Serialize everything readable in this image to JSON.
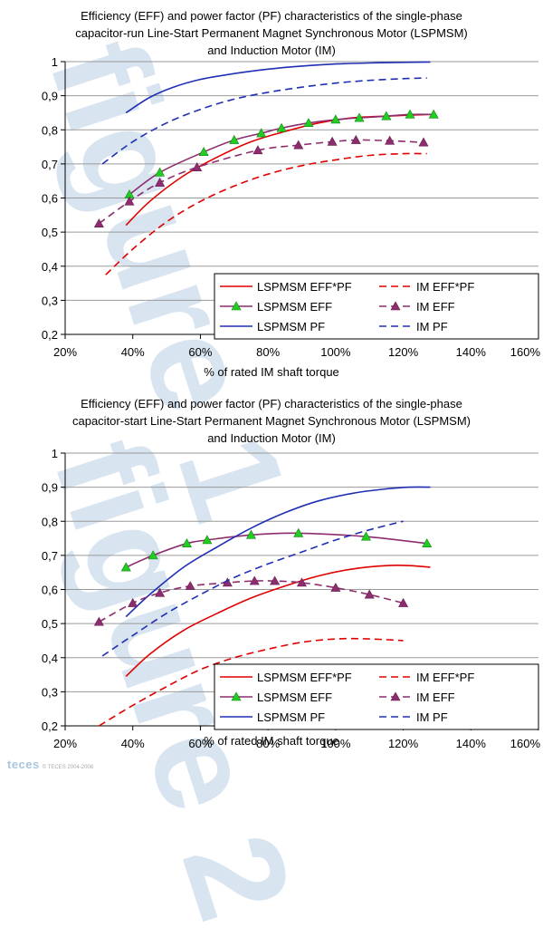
{
  "watermarks": [
    "figure 1",
    "figure 2"
  ],
  "logo": {
    "name": "teces",
    "small": "© TECES 2004-2008"
  },
  "chart_data": [
    {
      "type": "line",
      "title_lines": [
        "Efficiency (EFF) and power factor (PF) characteristics of the single-phase",
        "capacitor-run Line-Start Permanent Magnet Synchronous Motor (LSPMSM)",
        "and Induction Motor (IM)"
      ],
      "xlabel": "% of rated IM shaft torque",
      "ylabel": "",
      "xlim": [
        20,
        160
      ],
      "ylim": [
        0.2,
        1.0
      ],
      "xticks": [
        "20%",
        "40%",
        "60%",
        "80%",
        "100%",
        "120%",
        "140%",
        "160%"
      ],
      "yticks": [
        "0,2",
        "0,3",
        "0,4",
        "0,5",
        "0,6",
        "0,7",
        "0,8",
        "0,9",
        "1"
      ],
      "grid": "horizontal",
      "legend": "bottom-right",
      "series": [
        {
          "name": "LSPMSM EFF*PF",
          "color": "#e00000",
          "dash": "solid",
          "marker": "none",
          "x": [
            38,
            45,
            55,
            65,
            75,
            85,
            95,
            105,
            115,
            122,
            128
          ],
          "y": [
            0.52,
            0.59,
            0.665,
            0.72,
            0.765,
            0.795,
            0.82,
            0.835,
            0.84,
            0.843,
            0.845
          ]
        },
        {
          "name": "LSPMSM EFF",
          "color": "#8c2d6e",
          "dash": "solid",
          "marker": "triangle-green",
          "x": [
            39,
            48,
            61,
            70,
            78,
            84,
            92,
            100,
            107,
            115,
            122,
            129
          ],
          "y": [
            0.61,
            0.675,
            0.735,
            0.77,
            0.79,
            0.805,
            0.82,
            0.83,
            0.835,
            0.84,
            0.845,
            0.845
          ]
        },
        {
          "name": "LSPMSM PF",
          "color": "#1f2fb4",
          "dash": "solid",
          "marker": "none",
          "x": [
            38,
            45,
            52,
            60,
            70,
            80,
            90,
            100,
            110,
            120,
            128
          ],
          "y": [
            0.85,
            0.895,
            0.925,
            0.948,
            0.965,
            0.978,
            0.987,
            0.993,
            0.996,
            0.998,
            0.999
          ]
        },
        {
          "name": "IM EFF*PF",
          "color": "#e00000",
          "dash": "dashed",
          "marker": "none",
          "x": [
            32,
            40,
            50,
            60,
            70,
            80,
            90,
            100,
            110,
            120,
            127
          ],
          "y": [
            0.375,
            0.45,
            0.53,
            0.59,
            0.635,
            0.67,
            0.695,
            0.712,
            0.725,
            0.73,
            0.73
          ]
        },
        {
          "name": "IM EFF",
          "color": "#8c2d6e",
          "dash": "dashed",
          "marker": "triangle-purple",
          "x": [
            30,
            39,
            48,
            59,
            77,
            89,
            99,
            106,
            116,
            126
          ],
          "y": [
            0.525,
            0.59,
            0.645,
            0.69,
            0.74,
            0.755,
            0.765,
            0.77,
            0.768,
            0.763
          ]
        },
        {
          "name": "IM PF",
          "color": "#1f2fb4",
          "dash": "dashed",
          "marker": "none",
          "x": [
            31,
            40,
            50,
            60,
            70,
            80,
            90,
            100,
            110,
            120,
            127
          ],
          "y": [
            0.7,
            0.765,
            0.82,
            0.86,
            0.89,
            0.91,
            0.925,
            0.937,
            0.945,
            0.95,
            0.952
          ]
        }
      ]
    },
    {
      "type": "line",
      "title_lines": [
        "Efficiency (EFF) and power factor (PF) characteristics of the single-phase",
        "capacitor-start Line-Start Permanent Magnet Synchronous Motor (LSPMSM)",
        "and Induction Motor (IM)"
      ],
      "xlabel": "% of rated IM shaft torque",
      "ylabel": "",
      "xlim": [
        20,
        160
      ],
      "ylim": [
        0.2,
        1.0
      ],
      "xticks": [
        "20%",
        "40%",
        "60%",
        "80%",
        "100%",
        "120%",
        "140%",
        "160%"
      ],
      "yticks": [
        "0,2",
        "0,3",
        "0,4",
        "0,5",
        "0,6",
        "0,7",
        "0,8",
        "0,9",
        "1"
      ],
      "grid": "horizontal",
      "legend": "bottom-right",
      "series": [
        {
          "name": "LSPMSM EFF*PF",
          "color": "#e00000",
          "dash": "solid",
          "marker": "none",
          "x": [
            38,
            45,
            55,
            65,
            75,
            85,
            95,
            105,
            115,
            122,
            128
          ],
          "y": [
            0.345,
            0.41,
            0.48,
            0.53,
            0.575,
            0.61,
            0.64,
            0.66,
            0.67,
            0.67,
            0.665
          ]
        },
        {
          "name": "LSPMSM EFF",
          "color": "#8c2d6e",
          "dash": "solid",
          "marker": "triangle-green",
          "x": [
            38,
            46,
            56,
            62,
            75,
            89,
            109,
            127
          ],
          "y": [
            0.665,
            0.7,
            0.735,
            0.745,
            0.76,
            0.765,
            0.755,
            0.735
          ]
        },
        {
          "name": "LSPMSM PF",
          "color": "#1f2fb4",
          "dash": "solid",
          "marker": "none",
          "x": [
            38,
            45,
            55,
            65,
            75,
            85,
            95,
            105,
            115,
            122,
            128
          ],
          "y": [
            0.52,
            0.585,
            0.665,
            0.725,
            0.78,
            0.825,
            0.86,
            0.882,
            0.895,
            0.9,
            0.9
          ]
        },
        {
          "name": "IM EFF*PF",
          "color": "#e00000",
          "dash": "dashed",
          "marker": "none",
          "x": [
            30,
            40,
            50,
            60,
            70,
            80,
            90,
            100,
            110,
            120
          ],
          "y": [
            0.2,
            0.26,
            0.315,
            0.365,
            0.4,
            0.425,
            0.445,
            0.455,
            0.455,
            0.45
          ]
        },
        {
          "name": "IM EFF",
          "color": "#8c2d6e",
          "dash": "dashed",
          "marker": "triangle-purple",
          "x": [
            30,
            40,
            48,
            57,
            68,
            76,
            82,
            90,
            100,
            110,
            120
          ],
          "y": [
            0.505,
            0.56,
            0.59,
            0.61,
            0.62,
            0.625,
            0.625,
            0.62,
            0.605,
            0.585,
            0.56
          ]
        },
        {
          "name": "IM PF",
          "color": "#1f2fb4",
          "dash": "dashed",
          "marker": "none",
          "x": [
            31,
            40,
            50,
            60,
            70,
            80,
            90,
            100,
            110,
            120
          ],
          "y": [
            0.405,
            0.465,
            0.53,
            0.585,
            0.635,
            0.675,
            0.71,
            0.745,
            0.775,
            0.8
          ]
        }
      ]
    }
  ]
}
